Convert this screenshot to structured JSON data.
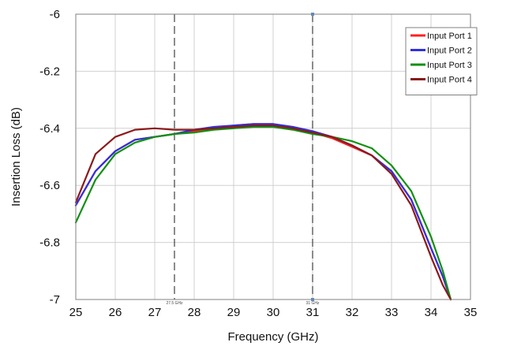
{
  "chart_data": {
    "type": "line",
    "title": "",
    "xlabel": "Frequency (GHz)",
    "ylabel": "Insertion Loss (dB)",
    "xlim": [
      25,
      35
    ],
    "ylim": [
      -7,
      -6
    ],
    "xticks": [
      "25",
      "26",
      "27",
      "28",
      "29",
      "30",
      "31",
      "32",
      "33",
      "34",
      "35"
    ],
    "yticks": [
      "-6",
      "-6.2",
      "-6.4",
      "-6.6",
      "-6.8",
      "-7"
    ],
    "grid": true,
    "legend_position": "top-right",
    "markers": [
      {
        "x": 27.5,
        "label": "27.5 GHz"
      },
      {
        "x": 31,
        "label": "31 GHz"
      }
    ],
    "series": [
      {
        "name": "Input Port 1",
        "color": "#ff2020",
        "x": [
          25,
          25.5,
          26,
          26.5,
          27,
          27.5,
          28,
          28.5,
          29,
          29.5,
          30,
          30.5,
          31,
          31.5,
          32,
          32.5,
          33,
          33.5,
          34,
          34.3,
          34.5
        ],
        "y": [
          -6.67,
          -6.55,
          -6.48,
          -6.44,
          -6.43,
          -6.42,
          -6.41,
          -6.4,
          -6.39,
          -6.385,
          -6.385,
          -6.4,
          -6.415,
          -6.435,
          -6.465,
          -6.495,
          -6.55,
          -6.65,
          -6.82,
          -6.92,
          -7.0
        ]
      },
      {
        "name": "Input Port 2",
        "color": "#3030e0",
        "x": [
          25,
          25.5,
          26,
          26.5,
          27,
          27.5,
          28,
          28.5,
          29,
          29.5,
          30,
          30.5,
          31,
          31.5,
          32,
          32.5,
          33,
          33.5,
          34,
          34.3,
          34.5
        ],
        "y": [
          -6.67,
          -6.55,
          -6.48,
          -6.44,
          -6.43,
          -6.42,
          -6.405,
          -6.395,
          -6.39,
          -6.385,
          -6.385,
          -6.395,
          -6.41,
          -6.43,
          -6.46,
          -6.495,
          -6.55,
          -6.65,
          -6.82,
          -6.92,
          -7.0
        ]
      },
      {
        "name": "Input Port 3",
        "color": "#109010",
        "x": [
          25,
          25.5,
          26,
          26.5,
          27,
          27.5,
          28,
          28.5,
          29,
          29.5,
          30,
          30.5,
          31,
          31.5,
          32,
          32.5,
          33,
          33.5,
          34,
          34.3,
          34.5
        ],
        "y": [
          -6.73,
          -6.58,
          -6.49,
          -6.45,
          -6.43,
          -6.42,
          -6.415,
          -6.405,
          -6.4,
          -6.395,
          -6.395,
          -6.405,
          -6.42,
          -6.43,
          -6.445,
          -6.47,
          -6.53,
          -6.62,
          -6.78,
          -6.9,
          -7.0
        ]
      },
      {
        "name": "Input Port 4",
        "color": "#8b1a1a",
        "x": [
          25,
          25.5,
          26,
          26.5,
          27,
          27.5,
          28,
          28.5,
          29,
          29.5,
          30,
          30.5,
          31,
          31.5,
          32,
          32.5,
          33,
          33.5,
          34,
          34.3,
          34.5
        ],
        "y": [
          -6.66,
          -6.49,
          -6.43,
          -6.405,
          -6.4,
          -6.405,
          -6.405,
          -6.4,
          -6.395,
          -6.39,
          -6.39,
          -6.4,
          -6.415,
          -6.43,
          -6.46,
          -6.495,
          -6.56,
          -6.67,
          -6.85,
          -6.95,
          -7.0
        ]
      }
    ]
  }
}
